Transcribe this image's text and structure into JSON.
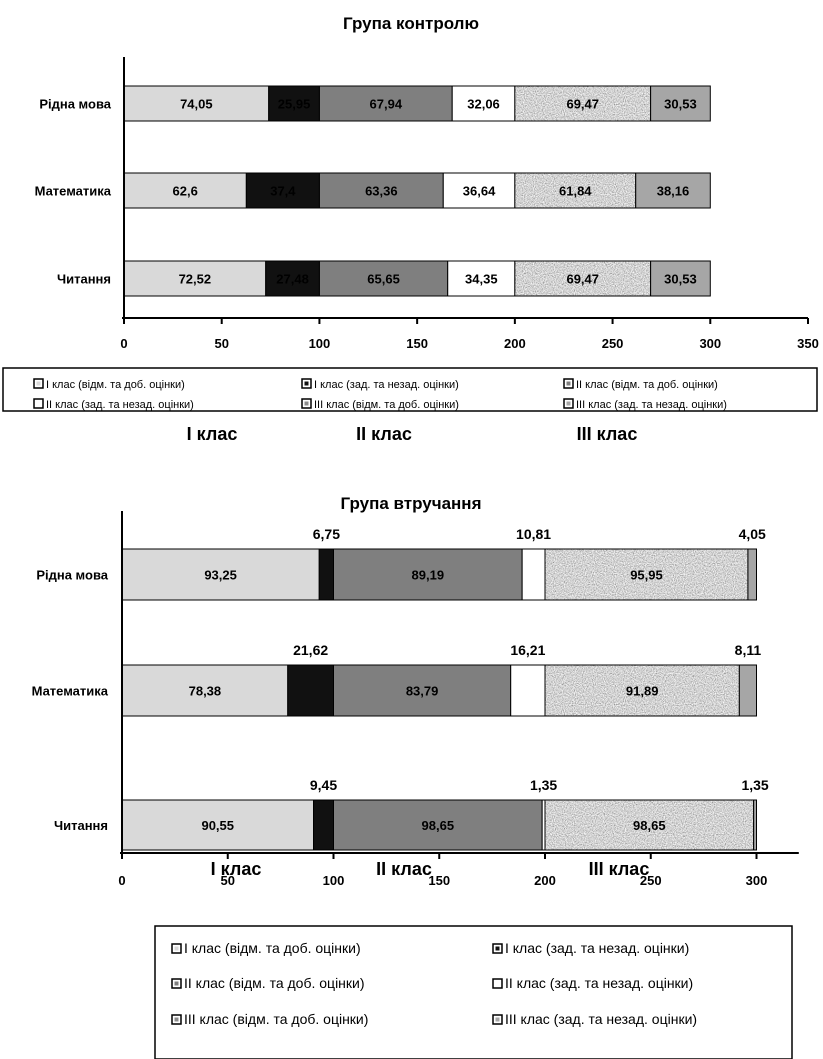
{
  "chart_data": [
    {
      "type": "bar",
      "orientation": "horizontal",
      "stacked": true,
      "title": "Група контролю",
      "categories": [
        "Рідна мова",
        "Математика",
        "Читання"
      ],
      "xlim": [
        0,
        350
      ],
      "x_ticks": [
        "0",
        "50",
        "100",
        "150",
        "200",
        "250",
        "300",
        "350"
      ],
      "series": [
        {
          "name": "I клас (відм. та доб. оцінки)",
          "values": [
            74.05,
            62.6,
            72.52
          ],
          "labels": [
            "74,05",
            "62,6",
            "72,52"
          ]
        },
        {
          "name": "I клас (зад. та незад. оцінки)",
          "values": [
            25.95,
            37.4,
            27.48
          ],
          "labels": [
            "25,95",
            "37,4",
            "27,48"
          ]
        },
        {
          "name": "II клас (відм. та доб. оцінки)",
          "values": [
            67.94,
            63.36,
            65.65
          ],
          "labels": [
            "67,94",
            "63,36",
            "65,65"
          ]
        },
        {
          "name": "II клас (зад. та незад. оцінки)",
          "values": [
            32.06,
            36.64,
            34.35
          ],
          "labels": [
            "32,06",
            "36,64",
            "34,35"
          ]
        },
        {
          "name": "III клас (відм. та доб. оцінки)",
          "values": [
            69.47,
            61.84,
            69.47
          ],
          "labels": [
            "69,47",
            "61,84",
            "69,47"
          ]
        },
        {
          "name": "III клас (зад. та незад. оцінки)",
          "values": [
            30.53,
            38.16,
            30.53
          ],
          "labels": [
            "30,53",
            "38,16",
            "30,53"
          ]
        }
      ],
      "class_labels": [
        "I клас",
        "II клас",
        "III клас"
      ],
      "legend": "bottom"
    },
    {
      "type": "bar",
      "orientation": "horizontal",
      "stacked": true,
      "title": "Група втручання",
      "categories": [
        "Рідна мова",
        "Математика",
        "Читання"
      ],
      "xlim": [
        0,
        320
      ],
      "x_ticks": [
        "0",
        "50",
        "100",
        "150",
        "200",
        "250",
        "300"
      ],
      "series": [
        {
          "name": "I клас (відм. та доб. оцінки)",
          "values": [
            93.25,
            78.38,
            90.55
          ],
          "labels": [
            "93,25",
            "78,38",
            "90,55"
          ]
        },
        {
          "name": "I клас (зад. та незад. оцінки)",
          "values": [
            6.75,
            21.62,
            9.45
          ],
          "labels": [
            "6,75",
            "21,62",
            "9,45"
          ]
        },
        {
          "name": "II клас (відм. та доб. оцінки)",
          "values": [
            89.19,
            83.79,
            98.65
          ],
          "labels": [
            "89,19",
            "83,79",
            "98,65"
          ]
        },
        {
          "name": "II клас (зад. та незад. оцінки)",
          "values": [
            10.81,
            16.21,
            1.35
          ],
          "labels": [
            "10,81",
            "16,21",
            "1,35"
          ]
        },
        {
          "name": "III клас (відм. та доб. оцінки)",
          "values": [
            95.95,
            91.89,
            98.65
          ],
          "labels": [
            "95,95",
            "91,89",
            "98,65"
          ]
        },
        {
          "name": "III клас (зад. та незад. оцінки)",
          "values": [
            4.05,
            8.11,
            1.35
          ],
          "labels": [
            "4,05",
            "8,11",
            "1,35"
          ]
        }
      ],
      "class_labels": [
        "I клас",
        "II клас",
        "III клас"
      ],
      "legend": "bottom"
    }
  ],
  "colors": {
    "i_good": "#d9d9d9",
    "i_poor": "#111111",
    "ii_good": "#7f7f7f",
    "ii_poor": "#ffffff",
    "iii_good": "texture",
    "iii_poor": "#a6a6a6"
  }
}
